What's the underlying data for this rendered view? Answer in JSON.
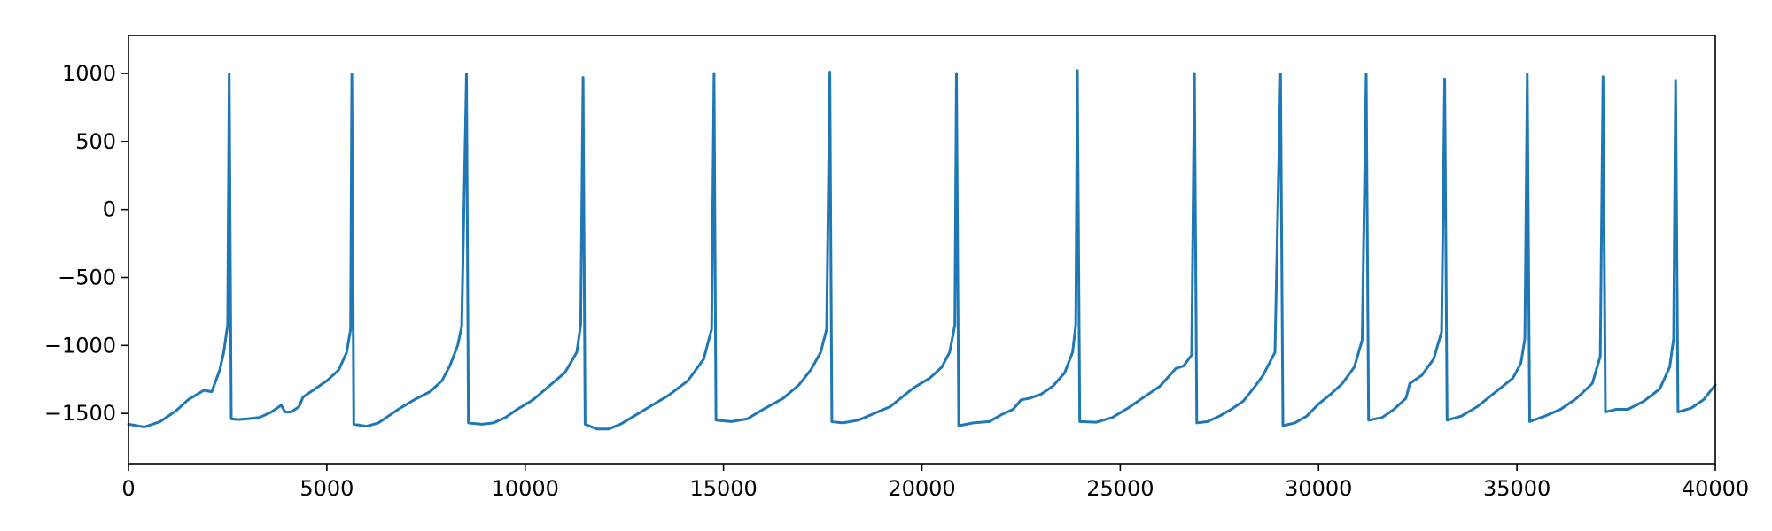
{
  "chart_data": {
    "type": "line",
    "title": "",
    "xlabel": "",
    "ylabel": "",
    "xlim": [
      0,
      40000
    ],
    "ylim": [
      -1870,
      1280
    ],
    "x_ticks": [
      0,
      5000,
      10000,
      15000,
      20000,
      25000,
      30000,
      35000,
      40000
    ],
    "x_tick_labels": [
      "0",
      "5000",
      "10000",
      "15000",
      "20000",
      "25000",
      "30000",
      "35000",
      "40000"
    ],
    "y_ticks": [
      1000,
      500,
      0,
      -500,
      -1000,
      -1500
    ],
    "y_tick_labels": [
      "1000",
      "500",
      "0",
      "−500",
      "−1000",
      "−1500"
    ],
    "grid": false,
    "legend": "none",
    "colors": {
      "series": "#1f77b4"
    },
    "series": [
      {
        "values": [
          [
            0,
            -1580
          ],
          [
            400,
            -1600
          ],
          [
            800,
            -1560
          ],
          [
            1200,
            -1480
          ],
          [
            1500,
            -1400
          ],
          [
            1900,
            -1330
          ],
          [
            2100,
            -1340
          ],
          [
            2200,
            -1260
          ],
          [
            2300,
            -1180
          ],
          [
            2400,
            -1050
          ],
          [
            2500,
            -850
          ],
          [
            2540,
            995
          ],
          [
            2590,
            -1540
          ],
          [
            2750,
            -1545
          ],
          [
            3000,
            -1540
          ],
          [
            3300,
            -1530
          ],
          [
            3600,
            -1490
          ],
          [
            3850,
            -1440
          ],
          [
            3950,
            -1490
          ],
          [
            4100,
            -1490
          ],
          [
            4300,
            -1450
          ],
          [
            4400,
            -1380
          ],
          [
            4700,
            -1320
          ],
          [
            5000,
            -1260
          ],
          [
            5300,
            -1180
          ],
          [
            5500,
            -1050
          ],
          [
            5600,
            -880
          ],
          [
            5630,
            995
          ],
          [
            5680,
            -1580
          ],
          [
            6000,
            -1595
          ],
          [
            6300,
            -1570
          ],
          [
            6500,
            -1530
          ],
          [
            6800,
            -1470
          ],
          [
            7200,
            -1400
          ],
          [
            7600,
            -1340
          ],
          [
            7900,
            -1260
          ],
          [
            8100,
            -1150
          ],
          [
            8300,
            -1000
          ],
          [
            8400,
            -860
          ],
          [
            8520,
            995
          ],
          [
            8570,
            -1570
          ],
          [
            8900,
            -1580
          ],
          [
            9200,
            -1570
          ],
          [
            9500,
            -1530
          ],
          [
            9800,
            -1470
          ],
          [
            10200,
            -1400
          ],
          [
            10600,
            -1300
          ],
          [
            11000,
            -1200
          ],
          [
            11300,
            -1050
          ],
          [
            11400,
            -850
          ],
          [
            11460,
            970
          ],
          [
            11510,
            -1580
          ],
          [
            11800,
            -1615
          ],
          [
            12100,
            -1615
          ],
          [
            12400,
            -1580
          ],
          [
            12800,
            -1510
          ],
          [
            13200,
            -1440
          ],
          [
            13600,
            -1370
          ],
          [
            14100,
            -1260
          ],
          [
            14500,
            -1100
          ],
          [
            14700,
            -880
          ],
          [
            14760,
            1000
          ],
          [
            14810,
            -1550
          ],
          [
            15200,
            -1560
          ],
          [
            15600,
            -1540
          ],
          [
            16000,
            -1470
          ],
          [
            16500,
            -1390
          ],
          [
            16900,
            -1290
          ],
          [
            17200,
            -1180
          ],
          [
            17450,
            -1050
          ],
          [
            17600,
            -880
          ],
          [
            17680,
            1010
          ],
          [
            17730,
            -1560
          ],
          [
            18000,
            -1570
          ],
          [
            18400,
            -1550
          ],
          [
            18800,
            -1500
          ],
          [
            19200,
            -1450
          ],
          [
            19500,
            -1380
          ],
          [
            19800,
            -1310
          ],
          [
            20200,
            -1240
          ],
          [
            20500,
            -1160
          ],
          [
            20700,
            -1050
          ],
          [
            20830,
            -850
          ],
          [
            20870,
            1000
          ],
          [
            20930,
            -1590
          ],
          [
            21300,
            -1570
          ],
          [
            21700,
            -1560
          ],
          [
            22000,
            -1510
          ],
          [
            22300,
            -1470
          ],
          [
            22500,
            -1400
          ],
          [
            22700,
            -1390
          ],
          [
            23000,
            -1360
          ],
          [
            23300,
            -1300
          ],
          [
            23600,
            -1200
          ],
          [
            23800,
            -1050
          ],
          [
            23880,
            -850
          ],
          [
            23920,
            1020
          ],
          [
            23980,
            -1560
          ],
          [
            24400,
            -1565
          ],
          [
            24800,
            -1530
          ],
          [
            25200,
            -1460
          ],
          [
            25600,
            -1380
          ],
          [
            26000,
            -1300
          ],
          [
            26400,
            -1170
          ],
          [
            26600,
            -1150
          ],
          [
            26800,
            -1070
          ],
          [
            26870,
            1000
          ],
          [
            26930,
            -1570
          ],
          [
            27200,
            -1560
          ],
          [
            27500,
            -1520
          ],
          [
            27800,
            -1470
          ],
          [
            28100,
            -1410
          ],
          [
            28400,
            -1300
          ],
          [
            28600,
            -1220
          ],
          [
            28900,
            -1050
          ],
          [
            29040,
            995
          ],
          [
            29100,
            -1590
          ],
          [
            29400,
            -1570
          ],
          [
            29700,
            -1520
          ],
          [
            30000,
            -1430
          ],
          [
            30300,
            -1360
          ],
          [
            30600,
            -1280
          ],
          [
            30900,
            -1160
          ],
          [
            31100,
            -960
          ],
          [
            31200,
            995
          ],
          [
            31260,
            -1550
          ],
          [
            31600,
            -1530
          ],
          [
            31900,
            -1470
          ],
          [
            32200,
            -1390
          ],
          [
            32300,
            -1280
          ],
          [
            32600,
            -1220
          ],
          [
            32900,
            -1100
          ],
          [
            33100,
            -900
          ],
          [
            33180,
            960
          ],
          [
            33240,
            -1550
          ],
          [
            33600,
            -1520
          ],
          [
            34000,
            -1450
          ],
          [
            34300,
            -1380
          ],
          [
            34600,
            -1310
          ],
          [
            34900,
            -1240
          ],
          [
            35100,
            -1130
          ],
          [
            35200,
            -950
          ],
          [
            35260,
            995
          ],
          [
            35320,
            -1560
          ],
          [
            35700,
            -1520
          ],
          [
            36100,
            -1470
          ],
          [
            36500,
            -1390
          ],
          [
            36900,
            -1280
          ],
          [
            37100,
            -1080
          ],
          [
            37170,
            975
          ],
          [
            37230,
            -1490
          ],
          [
            37500,
            -1470
          ],
          [
            37800,
            -1470
          ],
          [
            38200,
            -1410
          ],
          [
            38600,
            -1320
          ],
          [
            38850,
            -1160
          ],
          [
            38950,
            -950
          ],
          [
            39000,
            950
          ],
          [
            39060,
            -1490
          ],
          [
            39400,
            -1460
          ],
          [
            39700,
            -1400
          ],
          [
            40000,
            -1290
          ]
        ]
      }
    ]
  }
}
